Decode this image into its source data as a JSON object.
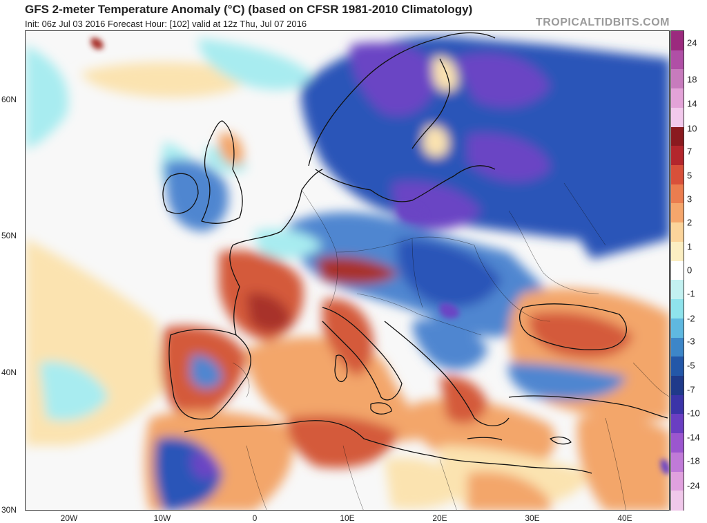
{
  "header": {
    "title": "GFS 2-meter Temperature Anomaly (°C) (based on CFSR 1981-2010 Climatology)",
    "subtitle": "Init: 06z Jul 03 2016   Forecast Hour: [102]   valid at 12z Thu, Jul 07 2016",
    "brand": "TROPICALTIDBITS.COM"
  },
  "axes": {
    "lat_labels": [
      "60N",
      "50N",
      "40N",
      "30N"
    ],
    "lon_labels": [
      "20W",
      "10W",
      "0",
      "10E",
      "20E",
      "30E",
      "40E"
    ]
  },
  "colorbar": {
    "labels": [
      "24",
      "18",
      "14",
      "10",
      "7",
      "5",
      "3",
      "2",
      "1",
      "0",
      "-1",
      "-2",
      "-3",
      "-5",
      "-7",
      "-10",
      "-14",
      "-18",
      "-24"
    ],
    "colors": [
      "#9b2a7e",
      "#b04fa6",
      "#c77bbd",
      "#e3a3d8",
      "#f2c9ec",
      "#8a1a1f",
      "#b3262c",
      "#d8503a",
      "#eb7d4f",
      "#f5a66c",
      "#fbd49b",
      "#fbeec2",
      "#ffffff",
      "#c3f1f1",
      "#8fe3ec",
      "#5fb8e0",
      "#3d86c8",
      "#2357a8",
      "#1f3a8a",
      "#3b34a8",
      "#6a3ec2",
      "#9b56cf",
      "#c07ad8",
      "#e0a1de",
      "#f0c8ea"
    ]
  },
  "map": {
    "colors": {
      "ocean_neutral": "#f8f8f8",
      "ocean_warm": "#fbe3b0",
      "ocean_cool": "#a8ecf0",
      "cold_strong": "#2a55b8",
      "cold_moderate": "#4f86d0",
      "cold_extreme": "#6b45c4",
      "warm_moderate": "#f3a66a",
      "warm_strong": "#d45a3a",
      "warm_extreme": "#a8302a",
      "coast": "#111111"
    }
  }
}
